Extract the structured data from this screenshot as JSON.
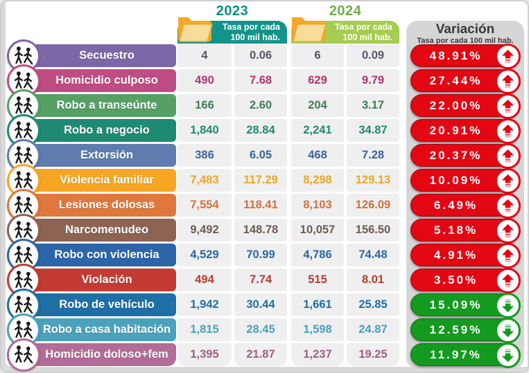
{
  "header": {
    "year_left": {
      "label": "2023",
      "title_color": "#0e8c84",
      "box_color": "#13948b"
    },
    "year_right": {
      "label": "2024",
      "title_color": "#6fad4a",
      "box_color": "#a6cc51"
    },
    "rate_caption": "Tasa por cada\n100 mil hab.",
    "variation": {
      "title": "Variación",
      "subtitle": "Tasa por cada 100 mil hab."
    }
  },
  "colors": {
    "panel_gray": "#d6d6d6",
    "cell_bg": "#efefef",
    "pill_up": "#e30613",
    "pill_up_border": "#9e0b0f",
    "pill_down": "#149a1e",
    "pill_down_border": "#0b6e10",
    "folder_back": "#f0a929",
    "folder_front": "#f7dc9b",
    "pictogram": "#1a1a1a"
  },
  "rows": [
    {
      "label": "Secuestro",
      "icon": "kidnapping-icon",
      "color": "#7c68a8",
      "value_color": "#54546e",
      "y2023": {
        "count": "4",
        "rate": "0.06"
      },
      "y2024": {
        "count": "6",
        "rate": "0.09"
      },
      "variation": {
        "percent": "48.91%",
        "direction": "up"
      }
    },
    {
      "label": "Homicidio culposo",
      "icon": "body-icon",
      "color": "#c04c84",
      "value_color": "#b5316e",
      "y2023": {
        "count": "490",
        "rate": "7.68"
      },
      "y2024": {
        "count": "629",
        "rate": "9.79"
      },
      "variation": {
        "percent": "27.44%",
        "direction": "up"
      }
    },
    {
      "label": "Robo a transeúnte",
      "icon": "chase-icon",
      "color": "#56a066",
      "value_color": "#3f7d54",
      "y2023": {
        "count": "166",
        "rate": "2.60"
      },
      "y2024": {
        "count": "204",
        "rate": "3.17"
      },
      "variation": {
        "percent": "22.00%",
        "direction": "up"
      }
    },
    {
      "label": "Robo a negocio",
      "icon": "burglar-box-icon",
      "color": "#1f8a72",
      "value_color": "#1f8a72",
      "y2023": {
        "count": "1,840",
        "rate": "28.84"
      },
      "y2024": {
        "count": "2,241",
        "rate": "34.87"
      },
      "variation": {
        "percent": "20.91%",
        "direction": "up"
      }
    },
    {
      "label": "Extorsión",
      "icon": "threat-phone-icon",
      "color": "#5e7dae",
      "value_color": "#3f639b",
      "y2023": {
        "count": "386",
        "rate": "6.05"
      },
      "y2024": {
        "count": "468",
        "rate": "7.28"
      },
      "variation": {
        "percent": "20.37%",
        "direction": "up"
      }
    },
    {
      "label": "Violencia familiar",
      "icon": "house-family-icon",
      "color": "#f6a623",
      "value_color": "#efa626",
      "y2023": {
        "count": "7,483",
        "rate": "117.29"
      },
      "y2024": {
        "count": "8,298",
        "rate": "129.13"
      },
      "variation": {
        "percent": "10.09%",
        "direction": "up"
      }
    },
    {
      "label": "Lesiones dolosas",
      "icon": "hand-icon",
      "color": "#e0773c",
      "value_color": "#d4703a",
      "y2023": {
        "count": "7,554",
        "rate": "118.41"
      },
      "y2024": {
        "count": "8,103",
        "rate": "126.09"
      },
      "variation": {
        "percent": "6.49%",
        "direction": "up"
      }
    },
    {
      "label": "Narcomenudeo",
      "icon": "drug-deal-icon",
      "color": "#8d6353",
      "value_color": "#6e5a52",
      "y2023": {
        "count": "9,492",
        "rate": "148.78"
      },
      "y2024": {
        "count": "10,057",
        "rate": "156.50"
      },
      "variation": {
        "percent": "5.18%",
        "direction": "up"
      }
    },
    {
      "label": "Robo con violencia",
      "icon": "mugging-icon",
      "color": "#2c65aa",
      "value_color": "#2c65aa",
      "y2023": {
        "count": "4,529",
        "rate": "70.99"
      },
      "y2024": {
        "count": "4,786",
        "rate": "74.48"
      },
      "variation": {
        "percent": "4.91%",
        "direction": "up"
      }
    },
    {
      "label": "Violación",
      "icon": "assault-icon",
      "color": "#c33b33",
      "value_color": "#b73b33",
      "y2023": {
        "count": "494",
        "rate": "7.74"
      },
      "y2024": {
        "count": "515",
        "rate": "8.01"
      },
      "variation": {
        "percent": "3.50%",
        "direction": "up"
      }
    },
    {
      "label": "Robo de vehículo",
      "icon": "car-theft-icon",
      "color": "#1d6fa6",
      "value_color": "#1d6fa6",
      "y2023": {
        "count": "1,942",
        "rate": "30.44"
      },
      "y2024": {
        "count": "1,661",
        "rate": "25.85"
      },
      "variation": {
        "percent": "15.09%",
        "direction": "down"
      }
    },
    {
      "label": "Robo a casa habitación",
      "icon": "burglar-bag-icon",
      "color": "#4ca1bd",
      "value_color": "#4a9fbc",
      "y2023": {
        "count": "1,815",
        "rate": "28.45"
      },
      "y2024": {
        "count": "1,598",
        "rate": "24.87"
      },
      "variation": {
        "percent": "12.59%",
        "direction": "down"
      }
    },
    {
      "label": "Homicidio doloso+fem",
      "icon": "homicide-icon",
      "color": "#b16c97",
      "value_color": "#9e5f85",
      "y2023": {
        "count": "1,395",
        "rate": "21.87"
      },
      "y2024": {
        "count": "1,237",
        "rate": "19.25"
      },
      "variation": {
        "percent": "11.97%",
        "direction": "down"
      }
    }
  ]
}
